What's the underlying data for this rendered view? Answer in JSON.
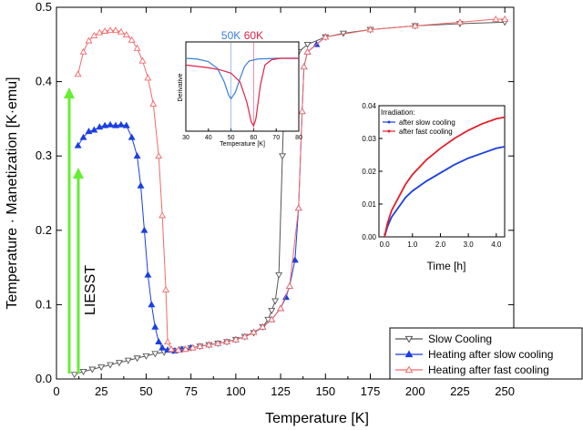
{
  "colors": {
    "slow": "#555555",
    "heat_slow": "#1a3fe0",
    "heat_fast": "#f06a6a",
    "green": "#66ee33",
    "inset_blue": "#3a7fd5",
    "inset_red": "#e0204a"
  },
  "annotation": {
    "text": "LIESST"
  },
  "chart_data": [
    {
      "type": "line",
      "xlabel": "Temperature [K]",
      "ylabel": "Temperature · Manetization [K·emu]",
      "xlim": [
        0,
        255
      ],
      "ylim": [
        0,
        0.5
      ],
      "x_ticks": [
        "0",
        "25",
        "50",
        "75",
        "100",
        "125",
        "150",
        "175",
        "200",
        "225",
        "250"
      ],
      "y_ticks": [
        "0.0",
        "0.1",
        "0.2",
        "0.3",
        "0.4",
        "0.5"
      ],
      "legend_position": "bottom-right",
      "series": [
        {
          "name": "Slow Cooling",
          "color": "#555555",
          "marker": "triangle-down",
          "points": [
            [
              10,
              0.006
            ],
            [
              15,
              0.01
            ],
            [
              20,
              0.013
            ],
            [
              25,
              0.016
            ],
            [
              30,
              0.019
            ],
            [
              35,
              0.022
            ],
            [
              40,
              0.025
            ],
            [
              45,
              0.028
            ],
            [
              50,
              0.031
            ],
            [
              55,
              0.034
            ],
            [
              60,
              0.036
            ],
            [
              65,
              0.038
            ],
            [
              70,
              0.04
            ],
            [
              75,
              0.042
            ],
            [
              80,
              0.044
            ],
            [
              85,
              0.046
            ],
            [
              90,
              0.048
            ],
            [
              95,
              0.05
            ],
            [
              100,
              0.053
            ],
            [
              105,
              0.057
            ],
            [
              110,
              0.062
            ],
            [
              115,
              0.07
            ],
            [
              118,
              0.08
            ],
            [
              120,
              0.092
            ],
            [
              122,
              0.105
            ],
            [
              124,
              0.14
            ],
            [
              126,
              0.3
            ],
            [
              127,
              0.38
            ],
            [
              128,
              0.4
            ],
            [
              130,
              0.42
            ],
            [
              132,
              0.43
            ],
            [
              135,
              0.44
            ],
            [
              140,
              0.45
            ],
            [
              150,
              0.46
            ],
            [
              160,
              0.465
            ],
            [
              175,
              0.47
            ],
            [
              200,
              0.475
            ],
            [
              225,
              0.478
            ],
            [
              250,
              0.48
            ]
          ]
        },
        {
          "name": "Heating after slow cooling",
          "color": "#1a3fe0",
          "marker": "triangle-up",
          "points": [
            [
              12,
              0.314
            ],
            [
              15,
              0.325
            ],
            [
              18,
              0.333
            ],
            [
              21,
              0.335
            ],
            [
              24,
              0.339
            ],
            [
              27,
              0.341
            ],
            [
              30,
              0.342
            ],
            [
              33,
              0.341
            ],
            [
              36,
              0.342
            ],
            [
              39,
              0.341
            ],
            [
              42,
              0.325
            ],
            [
              45,
              0.3
            ],
            [
              47,
              0.26
            ],
            [
              49,
              0.2
            ],
            [
              51,
              0.14
            ],
            [
              53,
              0.1
            ],
            [
              55,
              0.07
            ],
            [
              57,
              0.05
            ],
            [
              59,
              0.042
            ],
            [
              62,
              0.039
            ],
            [
              66,
              0.038
            ],
            [
              70,
              0.04
            ],
            [
              75,
              0.042
            ],
            [
              80,
              0.044
            ],
            [
              85,
              0.046
            ],
            [
              90,
              0.048
            ],
            [
              95,
              0.05
            ],
            [
              100,
              0.053
            ],
            [
              105,
              0.057
            ],
            [
              110,
              0.063
            ],
            [
              115,
              0.07
            ],
            [
              120,
              0.08
            ],
            [
              125,
              0.095
            ],
            [
              128,
              0.11
            ],
            [
              130,
              0.125
            ],
            [
              133,
              0.16
            ],
            [
              135,
              0.23
            ],
            [
              137,
              0.36
            ],
            [
              138,
              0.42
            ],
            [
              140,
              0.44
            ],
            [
              145,
              0.45
            ],
            [
              150,
              0.46
            ]
          ]
        },
        {
          "name": "Heating after  fast cooling",
          "color": "#f06a6a",
          "marker": "triangle-up",
          "points": [
            [
              12,
              0.41
            ],
            [
              15,
              0.44
            ],
            [
              18,
              0.455
            ],
            [
              21,
              0.462
            ],
            [
              24,
              0.466
            ],
            [
              27,
              0.468
            ],
            [
              30,
              0.469
            ],
            [
              33,
              0.469
            ],
            [
              36,
              0.467
            ],
            [
              39,
              0.463
            ],
            [
              42,
              0.456
            ],
            [
              45,
              0.445
            ],
            [
              48,
              0.428
            ],
            [
              51,
              0.405
            ],
            [
              54,
              0.37
            ],
            [
              57,
              0.3
            ],
            [
              59,
              0.22
            ],
            [
              61,
              0.12
            ],
            [
              62,
              0.05
            ],
            [
              64,
              0.04
            ],
            [
              68,
              0.039
            ],
            [
              72,
              0.04
            ],
            [
              76,
              0.042
            ],
            [
              80,
              0.044
            ],
            [
              85,
              0.046
            ],
            [
              90,
              0.048
            ],
            [
              95,
              0.05
            ],
            [
              100,
              0.053
            ],
            [
              105,
              0.057
            ],
            [
              110,
              0.063
            ],
            [
              115,
              0.07
            ],
            [
              120,
              0.08
            ],
            [
              125,
              0.095
            ],
            [
              130,
              0.125
            ],
            [
              135,
              0.23
            ],
            [
              137,
              0.36
            ],
            [
              138,
              0.42
            ],
            [
              140,
              0.44
            ],
            [
              150,
              0.46
            ],
            [
              175,
              0.47
            ],
            [
              200,
              0.475
            ],
            [
              225,
              0.48
            ],
            [
              245,
              0.484
            ],
            [
              250,
              0.484
            ]
          ]
        }
      ]
    },
    {
      "type": "line",
      "ylabel": "Derivative",
      "xlabel": "Temperature [K]",
      "xlim": [
        30,
        80
      ],
      "x_ticks": [
        "30",
        "40",
        "50",
        "60",
        "70",
        "80"
      ],
      "markers": [
        {
          "x": 50,
          "label": "50K",
          "color": "#3a7fd5"
        },
        {
          "x": 60,
          "label": "60K",
          "color": "#e0204a"
        }
      ],
      "series": [
        {
          "color": "#3a7fd5",
          "points": [
            [
              30,
              0.0
            ],
            [
              35,
              -0.01
            ],
            [
              40,
              -0.05
            ],
            [
              44,
              -0.15
            ],
            [
              47,
              -0.35
            ],
            [
              49,
              -0.55
            ],
            [
              50,
              -0.6
            ],
            [
              52,
              -0.5
            ],
            [
              54,
              -0.3
            ],
            [
              56,
              -0.12
            ],
            [
              58,
              -0.04
            ],
            [
              62,
              -0.01
            ],
            [
              70,
              0.0
            ],
            [
              80,
              0.0
            ]
          ]
        },
        {
          "color": "#e0204a",
          "points": [
            [
              30,
              -0.1
            ],
            [
              35,
              -0.12
            ],
            [
              40,
              -0.14
            ],
            [
              45,
              -0.17
            ],
            [
              50,
              -0.22
            ],
            [
              54,
              -0.35
            ],
            [
              57,
              -0.65
            ],
            [
              59,
              -0.95
            ],
            [
              60,
              -1.0
            ],
            [
              61,
              -0.9
            ],
            [
              63,
              -0.4
            ],
            [
              65,
              -0.1
            ],
            [
              68,
              -0.02
            ],
            [
              72,
              0.0
            ],
            [
              80,
              0.0
            ]
          ]
        }
      ]
    },
    {
      "type": "line",
      "title": "Irradiation:",
      "xlabel": "Time [h]",
      "xlim": [
        -0.2,
        4.3
      ],
      "ylim": [
        0,
        0.04
      ],
      "x_ticks": [
        "0.0",
        "1.0",
        "2.0",
        "3.0",
        "4.0"
      ],
      "y_ticks": [
        "0.00",
        "0.01",
        "0.02",
        "0.03",
        "0.04"
      ],
      "series": [
        {
          "name": "after slow cooling",
          "color": "#1a3fe0",
          "points": [
            [
              0,
              0.0
            ],
            [
              0.1,
              0.003
            ],
            [
              0.25,
              0.006
            ],
            [
              0.5,
              0.009
            ],
            [
              0.75,
              0.012
            ],
            [
              1.0,
              0.014
            ],
            [
              1.5,
              0.017
            ],
            [
              2.0,
              0.0195
            ],
            [
              2.5,
              0.022
            ],
            [
              3.0,
              0.024
            ],
            [
              3.5,
              0.0255
            ],
            [
              4.0,
              0.027
            ],
            [
              4.3,
              0.0275
            ]
          ]
        },
        {
          "name": "after  fast cooling",
          "color": "#e0202a",
          "points": [
            [
              0,
              0.0
            ],
            [
              0.1,
              0.004
            ],
            [
              0.25,
              0.008
            ],
            [
              0.5,
              0.012
            ],
            [
              0.75,
              0.016
            ],
            [
              1.0,
              0.019
            ],
            [
              1.5,
              0.0235
            ],
            [
              2.0,
              0.027
            ],
            [
              2.5,
              0.03
            ],
            [
              3.0,
              0.0325
            ],
            [
              3.5,
              0.0345
            ],
            [
              4.0,
              0.036
            ],
            [
              4.3,
              0.0365
            ]
          ]
        }
      ]
    }
  ]
}
